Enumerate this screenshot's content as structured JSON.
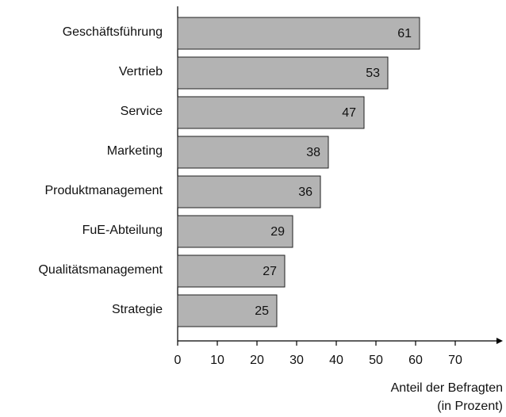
{
  "chart_data": {
    "type": "bar",
    "orientation": "horizontal",
    "categories": [
      "Geschäftsführung",
      "Vertrieb",
      "Service",
      "Marketing",
      "Produktmanagement",
      "FuE-Abteilung",
      "Qualitätsmanagement",
      "Strategie"
    ],
    "values": [
      61,
      53,
      47,
      38,
      36,
      29,
      27,
      25
    ],
    "color": "#b3b3b3",
    "xlim": [
      0,
      82
    ],
    "xticks": [
      0,
      10,
      20,
      30,
      40,
      50,
      60,
      70
    ],
    "xlabel": [
      "Anteil der Befragten",
      "(in Prozent)"
    ]
  }
}
